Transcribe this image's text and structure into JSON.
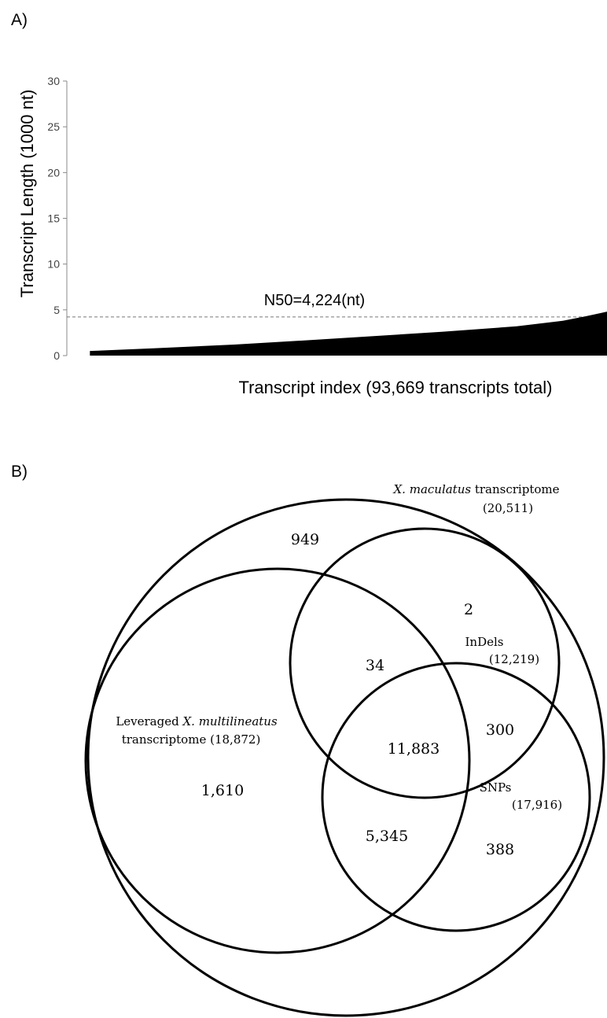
{
  "chart_data": [
    {
      "type": "area",
      "panel_label": "A)",
      "ylabel": "Transcript Length (1000 nt)",
      "xlabel": "Transcript index (93,669 transcripts total)",
      "annotation": "N50=4,224(nt)",
      "n50": 4.224,
      "x": [
        4000,
        15000,
        29000,
        45000,
        65000,
        78000,
        86000,
        90000,
        93669
      ],
      "values": [
        0.5,
        0.8,
        1.2,
        1.8,
        2.6,
        3.2,
        3.8,
        4.3,
        4.8
      ],
      "color": "#000000",
      "xlim": [
        0,
        93669
      ],
      "ylim": [
        0,
        30
      ],
      "yticks": [
        0,
        5,
        10,
        15,
        20,
        25,
        30
      ]
    },
    {
      "type": "venn",
      "panel_label": "B)",
      "sets": [
        {
          "italic": "X. maculatus",
          "name": "transcriptome",
          "value": 20511,
          "value_label": "(20,511)"
        },
        {
          "prefix": "Leveraged",
          "italic": "X. multilineatus",
          "name": "transcriptome",
          "value": 18872,
          "value_label": "(18,872)"
        },
        {
          "name": "InDels",
          "value": 12219,
          "value_label": "(12,219)"
        },
        {
          "name": "SNPs",
          "value": 17916,
          "value_label": "(17,916)"
        }
      ],
      "values": [
        949,
        2,
        34,
        11883,
        300,
        1610,
        5345,
        388
      ],
      "value_labels": [
        "949",
        "2",
        "34",
        "11,883",
        "300",
        "1,610",
        "5,345",
        "388"
      ]
    }
  ]
}
